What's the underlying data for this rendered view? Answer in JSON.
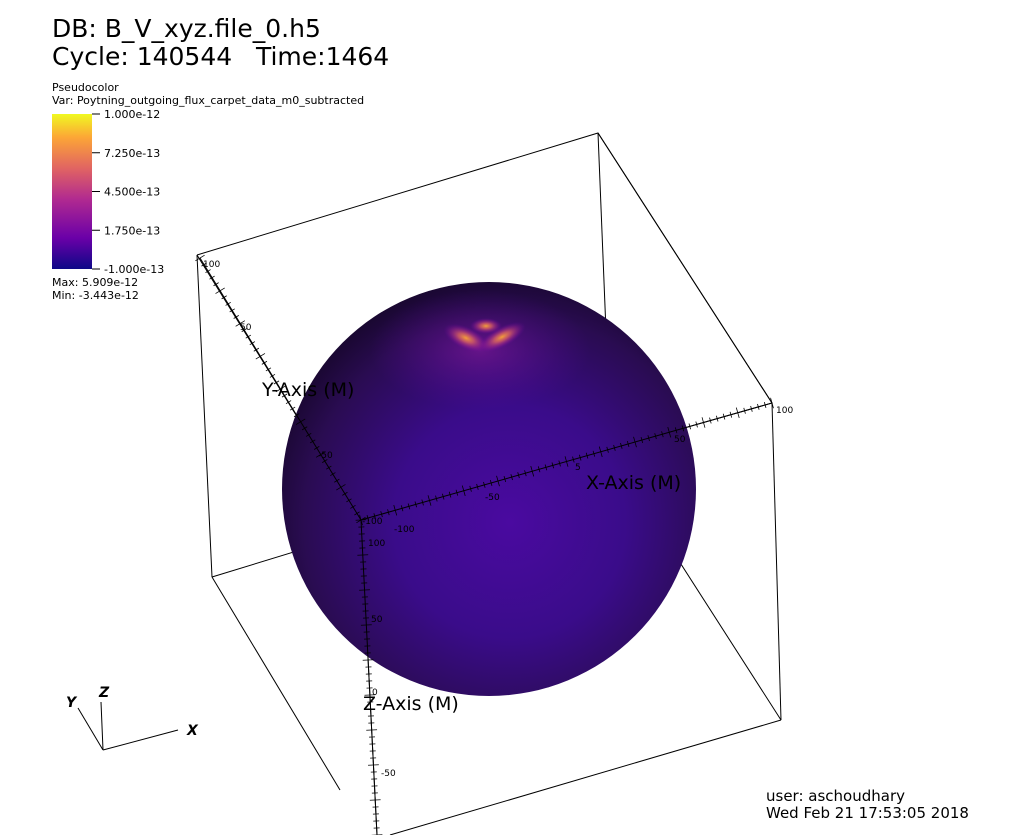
{
  "header": {
    "db_label": "DB: B_V_xyz.file_0.h5",
    "cycle_label": "Cycle:",
    "cycle_value": "140544",
    "time_label": "Time:",
    "time_value": "1464"
  },
  "legend": {
    "plot_type": "Pseudocolor",
    "variable": "Var: Poytning_outgoing_flux_carpet_data_m0_subtracted",
    "ticks": [
      "1.000e-12",
      "7.250e-13",
      "4.500e-13",
      "1.750e-13",
      "-1.000e-13"
    ],
    "max_label": "Max:  5.909e-12",
    "min_label": "Min: -3.443e-12",
    "colormap": [
      "#0d0887",
      "#6a00a8",
      "#b12a90",
      "#e16462",
      "#fca636",
      "#f0f921"
    ]
  },
  "axes": {
    "x_title": "X-Axis (M)",
    "y_title": "Y-Axis (M)",
    "z_title": "Z-Axis (M)",
    "y_ticks": [
      "100",
      "50",
      "-50",
      "-100"
    ],
    "x_ticks": [
      "-100",
      "-50",
      "5",
      "50",
      "100"
    ],
    "z_ticks": [
      "100",
      "50",
      "0",
      "-50"
    ]
  },
  "triad": {
    "x": "X",
    "y": "Y",
    "z": "Z"
  },
  "footer": {
    "user": "user: aschoudhary",
    "date": "Wed Feb 21 17:53:05 2018"
  }
}
